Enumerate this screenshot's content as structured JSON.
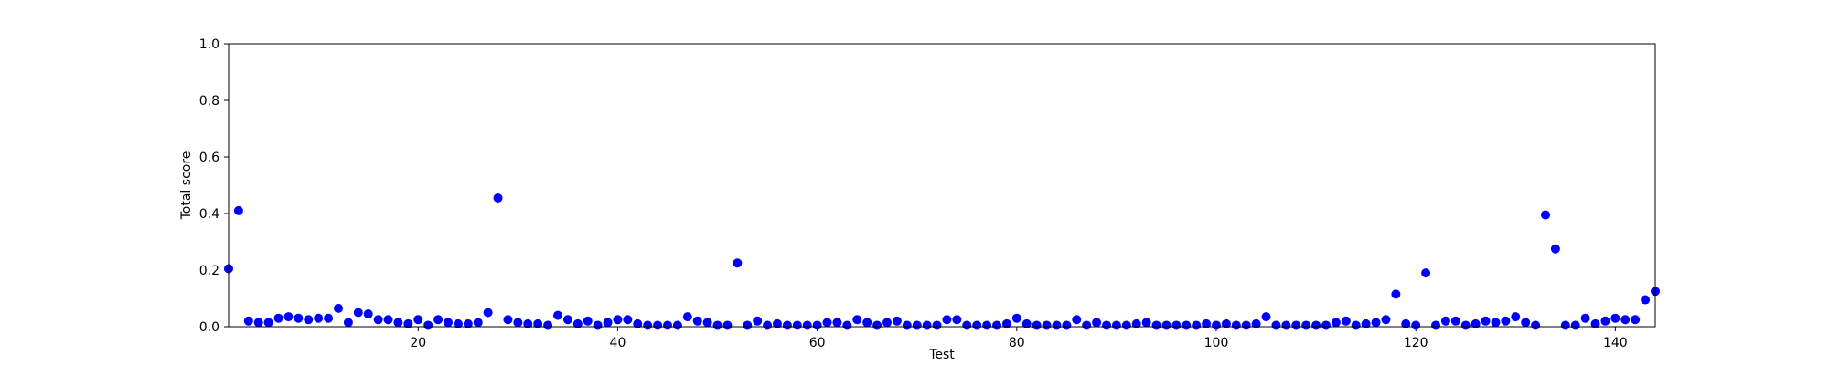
{
  "chart_data": {
    "type": "scatter",
    "title": "",
    "xlabel": "Test",
    "ylabel": "Total score",
    "xlim": [
      1,
      144
    ],
    "ylim": [
      0,
      1
    ],
    "x_ticks": [
      20,
      40,
      60,
      80,
      100,
      120,
      140
    ],
    "y_ticks": [
      0.0,
      0.2,
      0.4,
      0.6,
      0.8,
      1.0
    ],
    "y_tick_labels": [
      "0.0",
      "0.2",
      "0.4",
      "0.6",
      "0.8",
      "1.0"
    ],
    "grid": false,
    "marker_color": "#0000ff",
    "series": [
      {
        "x": [
          1,
          2,
          3,
          4,
          5,
          6,
          7,
          8,
          9,
          10,
          11,
          12,
          13,
          14,
          15,
          16,
          17,
          18,
          19,
          20,
          21,
          22,
          23,
          24,
          25,
          26,
          27,
          28,
          29,
          30,
          31,
          32,
          33,
          34,
          35,
          36,
          37,
          38,
          39,
          40,
          41,
          42,
          43,
          44,
          45,
          46,
          47,
          48,
          49,
          50,
          51,
          52,
          53,
          54,
          55,
          56,
          57,
          58,
          59,
          60,
          61,
          62,
          63,
          64,
          65,
          66,
          67,
          68,
          69,
          70,
          71,
          72,
          73,
          74,
          75,
          76,
          77,
          78,
          79,
          80,
          81,
          82,
          83,
          84,
          85,
          86,
          87,
          88,
          89,
          90,
          91,
          92,
          93,
          94,
          95,
          96,
          97,
          98,
          99,
          100,
          101,
          102,
          103,
          104,
          105,
          106,
          107,
          108,
          109,
          110,
          111,
          112,
          113,
          114,
          115,
          116,
          117,
          118,
          119,
          120,
          121,
          122,
          123,
          124,
          125,
          126,
          127,
          128,
          129,
          130,
          131,
          132,
          133,
          134,
          135,
          136,
          137,
          138,
          139,
          140,
          141,
          142,
          143,
          144
        ],
        "y": [
          0.205,
          0.41,
          0.02,
          0.015,
          0.015,
          0.03,
          0.035,
          0.03,
          0.025,
          0.03,
          0.03,
          0.065,
          0.015,
          0.05,
          0.045,
          0.025,
          0.025,
          0.015,
          0.01,
          0.025,
          0.005,
          0.025,
          0.015,
          0.01,
          0.01,
          0.015,
          0.05,
          0.455,
          0.025,
          0.015,
          0.01,
          0.01,
          0.005,
          0.04,
          0.025,
          0.01,
          0.02,
          0.005,
          0.015,
          0.025,
          0.025,
          0.01,
          0.005,
          0.005,
          0.005,
          0.005,
          0.035,
          0.02,
          0.015,
          0.005,
          0.005,
          0.225,
          0.005,
          0.02,
          0.005,
          0.01,
          0.005,
          0.005,
          0.005,
          0.005,
          0.015,
          0.015,
          0.005,
          0.025,
          0.015,
          0.005,
          0.015,
          0.02,
          0.005,
          0.005,
          0.005,
          0.005,
          0.025,
          0.025,
          0.005,
          0.005,
          0.005,
          0.005,
          0.01,
          0.03,
          0.01,
          0.005,
          0.005,
          0.005,
          0.005,
          0.025,
          0.005,
          0.015,
          0.005,
          0.005,
          0.005,
          0.01,
          0.015,
          0.005,
          0.005,
          0.005,
          0.005,
          0.005,
          0.01,
          0.005,
          0.01,
          0.005,
          0.005,
          0.01,
          0.035,
          0.005,
          0.005,
          0.005,
          0.005,
          0.005,
          0.005,
          0.015,
          0.02,
          0.005,
          0.01,
          0.015,
          0.025,
          0.115,
          0.01,
          0.005,
          0.19,
          0.005,
          0.02,
          0.02,
          0.005,
          0.01,
          0.02,
          0.015,
          0.02,
          0.035,
          0.015,
          0.005,
          0.395,
          0.275,
          0.005,
          0.005,
          0.03,
          0.01,
          0.02,
          0.03,
          0.025,
          0.025,
          0.095,
          0.125
        ]
      }
    ]
  }
}
